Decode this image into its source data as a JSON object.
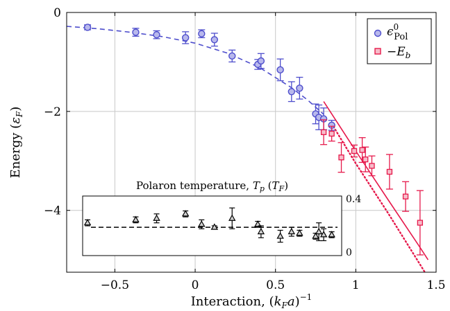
{
  "colors": {
    "polaron": "#4d4dcc",
    "polaron_fill": "#b8b8ec",
    "binding": "#e6194b",
    "binding_fill": "#f6bcc9",
    "inset": "#000000",
    "grid": "#c8c8c8"
  },
  "chart_data": {
    "type": "scatter",
    "xlabel": "Interaction, (k_F a)^-1",
    "ylabel": "Energy (ε_F)",
    "xlim": [
      -0.8,
      1.5
    ],
    "ylim": [
      -5.25,
      0
    ],
    "xticks": [
      -0.5,
      0,
      0.5,
      1,
      1.5
    ],
    "xtick_labels": [
      "−0.5",
      "0",
      "0.5",
      "1",
      "1.5"
    ],
    "yticks": [
      0,
      -2,
      -4
    ],
    "ytick_labels": [
      "0",
      "−2",
      "−4"
    ],
    "grid": true,
    "legend_position": "top-right",
    "legend": [
      "ε⁰_Pol",
      "−E_b"
    ],
    "series": [
      {
        "name": "ε⁰_Pol",
        "marker": "circle",
        "color": "#4d4dcc",
        "points": [
          {
            "x": -0.67,
            "y": -0.3,
            "err": 0.05
          },
          {
            "x": -0.37,
            "y": -0.4,
            "err": 0.08
          },
          {
            "x": -0.24,
            "y": -0.45,
            "err": 0.08
          },
          {
            "x": -0.06,
            "y": -0.51,
            "err": 0.12
          },
          {
            "x": 0.04,
            "y": -0.43,
            "err": 0.08
          },
          {
            "x": 0.12,
            "y": -0.55,
            "err": 0.13
          },
          {
            "x": 0.23,
            "y": -0.88,
            "err": 0.12
          },
          {
            "x": 0.39,
            "y": -1.05,
            "err": 0.1
          },
          {
            "x": 0.41,
            "y": -0.98,
            "err": 0.15
          },
          {
            "x": 0.53,
            "y": -1.16,
            "err": 0.22
          },
          {
            "x": 0.6,
            "y": -1.6,
            "err": 0.2
          },
          {
            "x": 0.65,
            "y": -1.53,
            "err": 0.22
          },
          {
            "x": 0.75,
            "y": -2.05,
            "err": 0.2
          },
          {
            "x": 0.77,
            "y": -2.12,
            "err": 0.25
          },
          {
            "x": 0.8,
            "y": -2.15,
            "err": 0.22
          },
          {
            "x": 0.85,
            "y": -2.28,
            "err": 0.1
          }
        ],
        "fit_curve": {
          "style": "dashed",
          "x": [
            -0.8,
            -0.6,
            -0.4,
            -0.2,
            0.0,
            0.2,
            0.4,
            0.6,
            0.7,
            0.8
          ],
          "y": [
            -0.28,
            -0.33,
            -0.4,
            -0.49,
            -0.62,
            -0.82,
            -1.11,
            -1.52,
            -1.77,
            -2.06
          ]
        }
      },
      {
        "name": "−E_b",
        "marker": "square",
        "color": "#e6194b",
        "points": [
          {
            "x": 0.8,
            "y": -2.42,
            "err": 0.25
          },
          {
            "x": 0.85,
            "y": -2.45,
            "err": 0.15
          },
          {
            "x": 0.91,
            "y": -2.93,
            "err": 0.3
          },
          {
            "x": 0.99,
            "y": -2.8,
            "err": 0.12
          },
          {
            "x": 1.04,
            "y": -2.78,
            "err": 0.25
          },
          {
            "x": 1.06,
            "y": -2.97,
            "err": 0.25
          },
          {
            "x": 1.1,
            "y": -3.1,
            "err": 0.2
          },
          {
            "x": 1.21,
            "y": -3.22,
            "err": 0.35
          },
          {
            "x": 1.31,
            "y": -3.72,
            "err": 0.3
          },
          {
            "x": 1.4,
            "y": -4.25,
            "err": 0.65
          }
        ],
        "theory_solid": {
          "x": [
            0.8,
            1.0,
            1.2,
            1.4,
            1.45
          ],
          "y": [
            -1.8,
            -2.8,
            -3.78,
            -4.75,
            -5.0
          ]
        },
        "theory_dotted": {
          "x": [
            0.85,
            1.0,
            1.2,
            1.43
          ],
          "y": [
            -2.25,
            -3.05,
            -4.05,
            -5.25
          ]
        }
      }
    ],
    "inset": {
      "title": "Polaron temperature, T_p (T_F)",
      "ylim": [
        0,
        0.4
      ],
      "yticks": [
        0,
        0.4
      ],
      "ytick_labels": [
        "0",
        "0.4"
      ],
      "marker": "triangle",
      "mean_line": 0.19,
      "points": [
        {
          "x": -0.67,
          "y": 0.22,
          "err": 0.02
        },
        {
          "x": -0.37,
          "y": 0.24,
          "err": 0.02
        },
        {
          "x": -0.24,
          "y": 0.25,
          "err": 0.03
        },
        {
          "x": -0.06,
          "y": 0.28,
          "err": 0.02
        },
        {
          "x": 0.04,
          "y": 0.21,
          "err": 0.03
        },
        {
          "x": 0.12,
          "y": 0.19,
          "err": 0.01
        },
        {
          "x": 0.23,
          "y": 0.25,
          "err": 0.07
        },
        {
          "x": 0.39,
          "y": 0.21,
          "err": 0.02
        },
        {
          "x": 0.41,
          "y": 0.16,
          "err": 0.04
        },
        {
          "x": 0.53,
          "y": 0.13,
          "err": 0.04
        },
        {
          "x": 0.6,
          "y": 0.16,
          "err": 0.03
        },
        {
          "x": 0.65,
          "y": 0.15,
          "err": 0.02
        },
        {
          "x": 0.75,
          "y": 0.13,
          "err": 0.02
        },
        {
          "x": 0.77,
          "y": 0.16,
          "err": 0.06
        },
        {
          "x": 0.8,
          "y": 0.14,
          "err": 0.04
        },
        {
          "x": 0.85,
          "y": 0.14,
          "err": 0.02
        }
      ]
    }
  }
}
